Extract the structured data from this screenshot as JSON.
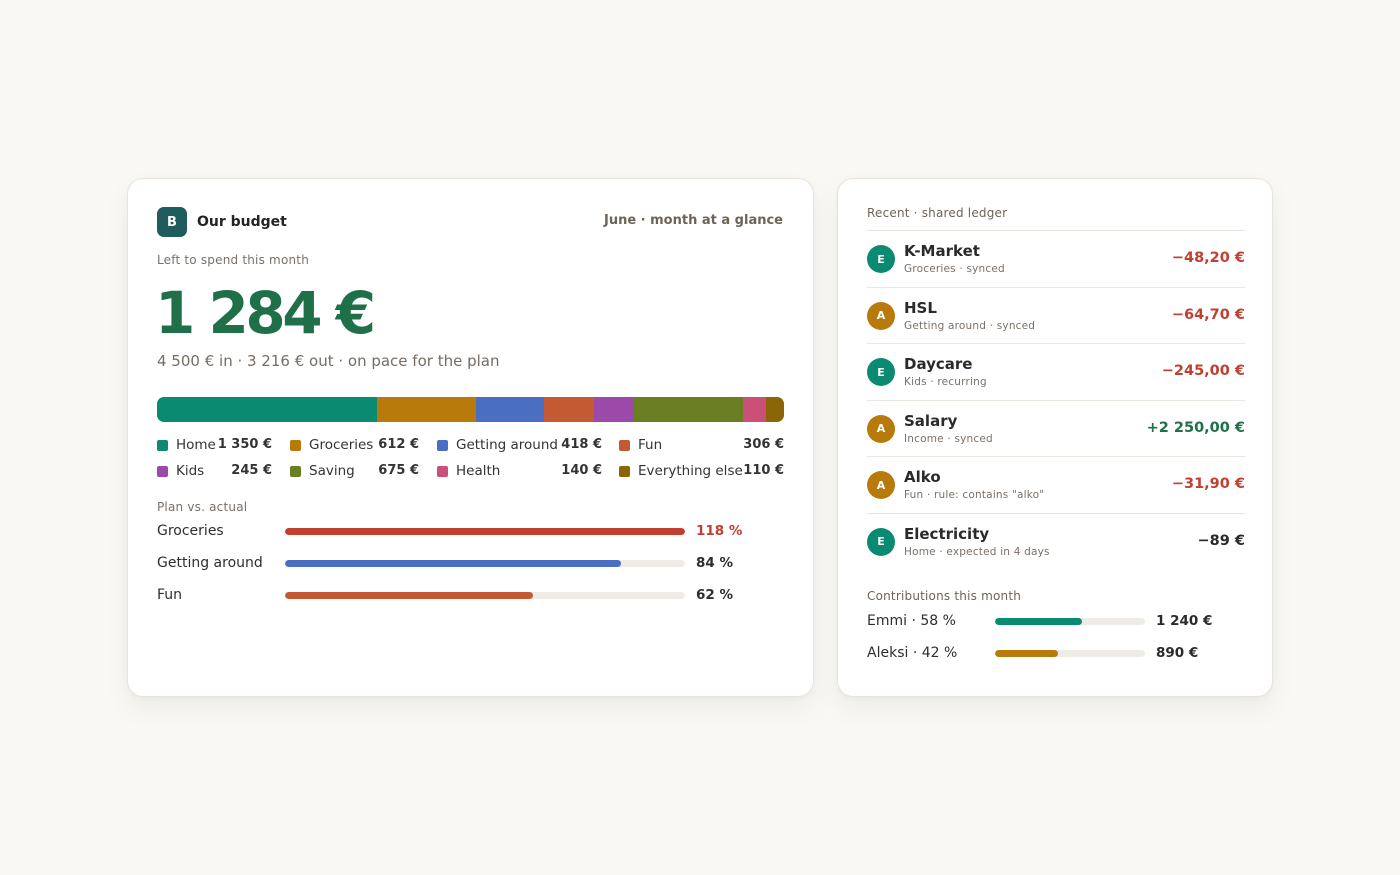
{
  "budget": {
    "logo_letter": "B",
    "name": "Our budget",
    "period": "June · month at a glance",
    "left_label": "Left to spend this month",
    "left_amount": "1 284 €",
    "summary": "4 500 € in · 3 216 € out · on pace for the plan",
    "categories": [
      {
        "name": "Home",
        "value": "1 350 €",
        "amount": 1350,
        "color": "#0b8a72"
      },
      {
        "name": "Groceries",
        "value": "612 €",
        "amount": 612,
        "color": "#b87a0b"
      },
      {
        "name": "Getting around",
        "value": "418 €",
        "amount": 418,
        "color": "#4a6fc2"
      },
      {
        "name": "Fun",
        "value": "306 €",
        "amount": 306,
        "color": "#c45a32"
      },
      {
        "name": "Kids",
        "value": "245 €",
        "amount": 245,
        "color": "#9b4aaa"
      },
      {
        "name": "Saving",
        "value": "675 €",
        "amount": 675,
        "color": "#6a7e22"
      },
      {
        "name": "Health",
        "value": "140 €",
        "amount": 140,
        "color": "#cc4f78"
      },
      {
        "name": "Everything else",
        "value": "110 €",
        "amount": 110,
        "color": "#8c6508"
      }
    ],
    "plan_label": "Plan vs. actual",
    "plan_rows": [
      {
        "name": "Groceries",
        "pct_text": "118 %",
        "fill": 1.0,
        "color": "#c13f2f",
        "text_color": "#c13f2f"
      },
      {
        "name": "Getting around",
        "pct_text": "84 %",
        "fill": 0.84,
        "color": "#4a6fc2",
        "text_color": "#2e2e2e"
      },
      {
        "name": "Fun",
        "pct_text": "62 %",
        "fill": 0.62,
        "color": "#c45a32",
        "text_color": "#2e2e2e"
      }
    ]
  },
  "ledger": {
    "title": "Recent · shared ledger",
    "transactions": [
      {
        "avatar": "E",
        "avatar_color": "#0b8a72",
        "name": "K-Market",
        "sub": "Groceries · synced",
        "amount": "−48,20 €",
        "amount_color": "#c13f2f"
      },
      {
        "avatar": "A",
        "avatar_color": "#b87a0b",
        "name": "HSL",
        "sub": "Getting around · synced",
        "amount": "−64,70 €",
        "amount_color": "#c13f2f"
      },
      {
        "avatar": "E",
        "avatar_color": "#0b8a72",
        "name": "Daycare",
        "sub": "Kids · recurring",
        "amount": "−245,00 €",
        "amount_color": "#c13f2f"
      },
      {
        "avatar": "A",
        "avatar_color": "#b87a0b",
        "name": "Salary",
        "sub": "Income · synced",
        "amount": "+2 250,00 €",
        "amount_color": "#1f6f49"
      },
      {
        "avatar": "A",
        "avatar_color": "#b87a0b",
        "name": "Alko",
        "sub": "Fun · rule: contains \"alko\"",
        "amount": "−31,90 €",
        "amount_color": "#c13f2f"
      },
      {
        "avatar": "E",
        "avatar_color": "#0b8a72",
        "name": "Electricity",
        "sub": "Home · expected in 4 days",
        "amount": "−89 €",
        "amount_color": "#2a2a2a"
      }
    ],
    "contrib_title": "Contributions this month",
    "contributions": [
      {
        "name": "Emmi · 58 %",
        "share": 0.58,
        "amount": "1 240 €",
        "color": "#0b8a72"
      },
      {
        "name": "Aleksi · 42 %",
        "share": 0.42,
        "amount": "890 €",
        "color": "#b87a0b"
      }
    ]
  }
}
